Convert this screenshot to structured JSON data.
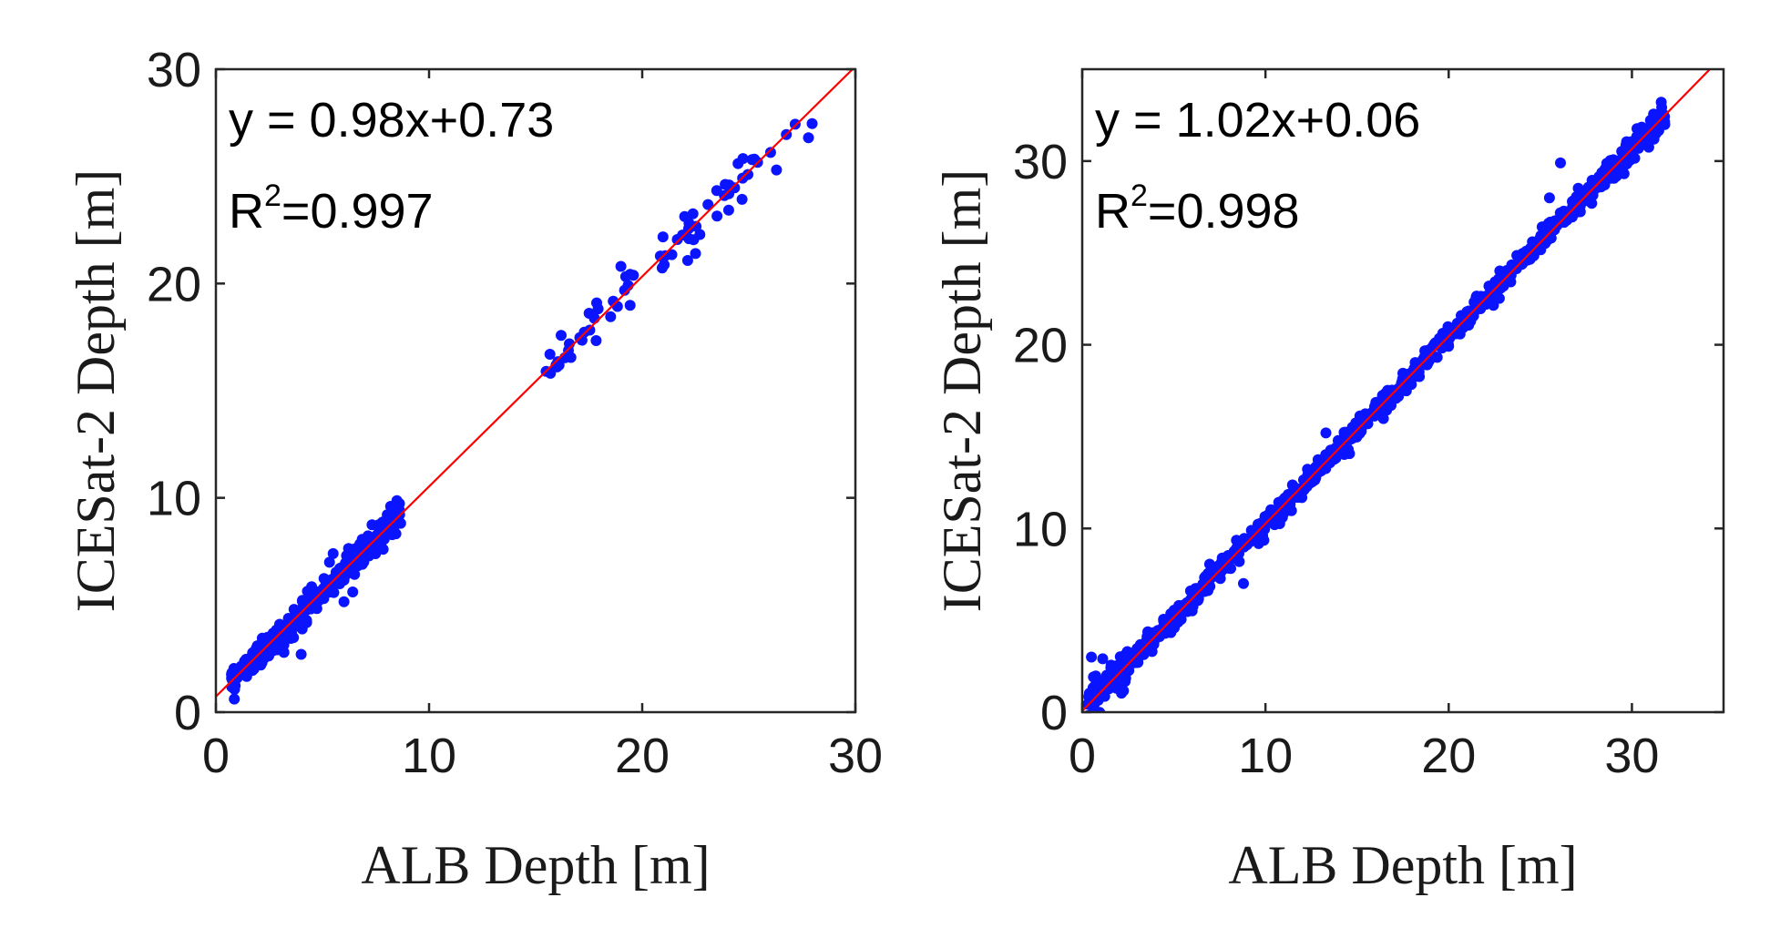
{
  "chart_data": [
    {
      "type": "scatter",
      "xlabel": "ALB Depth [m]",
      "ylabel": "ICESat-2 Depth [m]",
      "xlim": [
        0,
        30
      ],
      "ylim": [
        0,
        30
      ],
      "xticks": [
        0,
        10,
        20,
        30
      ],
      "yticks": [
        0,
        10,
        20,
        30
      ],
      "xtick_labels": [
        "0",
        "10",
        "20",
        "30"
      ],
      "ytick_labels": [
        "0",
        "10",
        "20",
        "30"
      ],
      "equation": "y = 0.98x+0.73",
      "r2_prefix": "R",
      "r2_exp": "2",
      "r2_value": "=0.997",
      "fit": {
        "slope": 0.98,
        "intercept": 0.73,
        "color": "#ff0000"
      },
      "point_color": "#0a14ff",
      "clusters": [
        {
          "x_range": [
            0.7,
            8.7
          ],
          "n": 300,
          "noise": 0.35
        },
        {
          "x_range": [
            15.4,
            16.8
          ],
          "n": 12,
          "noise": 0.35
        },
        {
          "x_range": [
            17.0,
            19.8
          ],
          "n": 18,
          "noise": 0.45
        },
        {
          "x_range": [
            20.8,
            23.6
          ],
          "n": 20,
          "noise": 0.5
        },
        {
          "x_range": [
            23.8,
            28.0
          ],
          "n": 18,
          "noise": 0.55
        }
      ],
      "outliers": [
        [
          4.0,
          2.7
        ],
        [
          22.5,
          21.4
        ],
        [
          26.3,
          25.3
        ],
        [
          27.8,
          26.8
        ],
        [
          19.0,
          20.8
        ],
        [
          5.5,
          7.4
        ]
      ]
    },
    {
      "type": "scatter",
      "xlabel": "ALB Depth [m]",
      "ylabel": "ICESat-2 Depth [m]",
      "xlim": [
        0,
        35
      ],
      "ylim": [
        0,
        35
      ],
      "xticks": [
        0,
        10,
        20,
        30
      ],
      "yticks": [
        0,
        10,
        20,
        30
      ],
      "xtick_labels": [
        "0",
        "10",
        "20",
        "30"
      ],
      "ytick_labels": [
        "0",
        "10",
        "20",
        "30"
      ],
      "equation": "y = 1.02x+0.06",
      "r2_prefix": "R",
      "r2_exp": "2",
      "r2_value": "=0.998",
      "fit": {
        "slope": 1.02,
        "intercept": 0.06,
        "color": "#ff0000"
      },
      "point_color": "#0a14ff",
      "clusters": [
        {
          "x_range": [
            0.3,
            31.8
          ],
          "n": 900,
          "noise": 0.3
        },
        {
          "x_range": [
            0.3,
            2.5
          ],
          "n": 60,
          "noise": 0.6
        }
      ],
      "outliers": [
        [
          0.5,
          3.0
        ],
        [
          8.8,
          7.0
        ],
        [
          13.3,
          15.2
        ],
        [
          26.1,
          29.9
        ],
        [
          31.6,
          33.2
        ],
        [
          25.5,
          28.0
        ]
      ]
    }
  ]
}
